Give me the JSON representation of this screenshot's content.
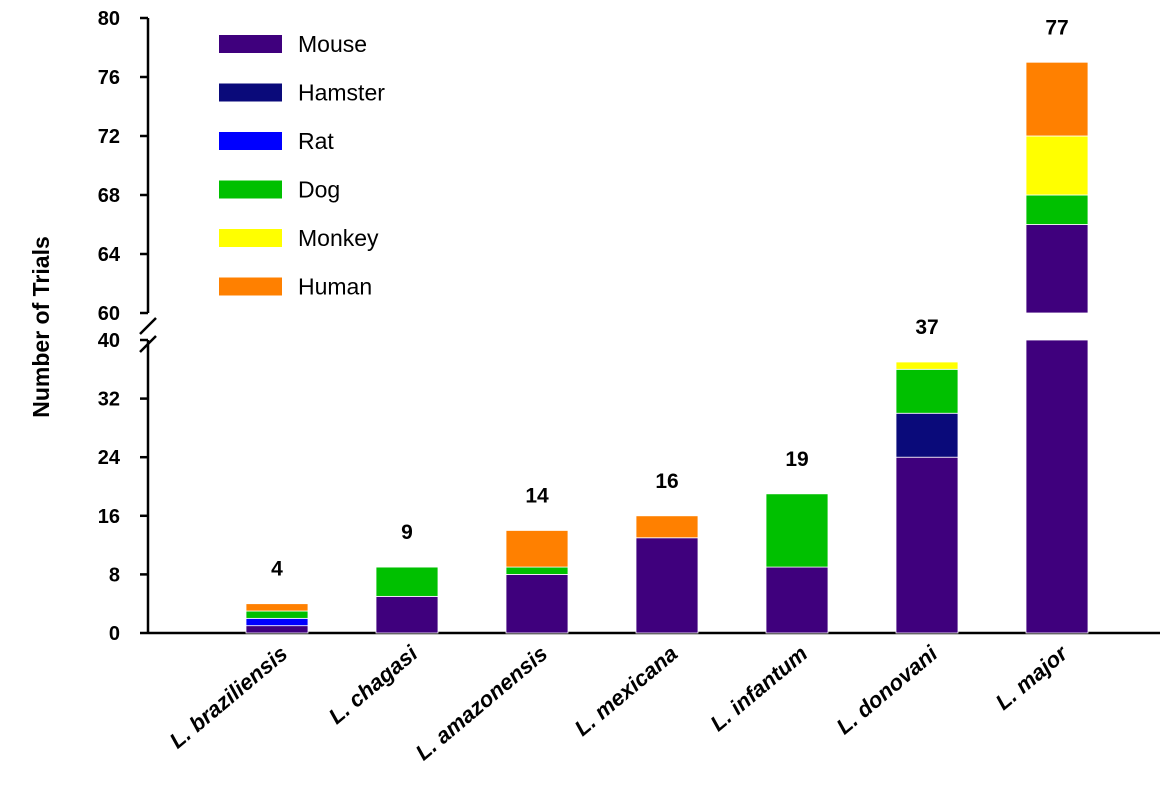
{
  "chart_data": {
    "type": "bar",
    "stacked": true,
    "title": "",
    "xlabel": "",
    "ylabel": "Number of Trials",
    "y_axis_break": {
      "lower_range": [
        0,
        40
      ],
      "upper_range": [
        60,
        80
      ]
    },
    "ylim": [
      0,
      80
    ],
    "yticks_lower": [
      "0",
      "8",
      "16",
      "24",
      "32",
      "40"
    ],
    "yticks_upper": [
      "60",
      "64",
      "68",
      "72",
      "76",
      "80"
    ],
    "legend_position": "top-left",
    "categories": [
      "L. braziliensis",
      "L. chagasi",
      "L. amazonensis",
      "L. mexicana",
      "L. infantum",
      "L. donovani",
      "L. major"
    ],
    "totals": [
      "4",
      "9",
      "14",
      "16",
      "19",
      "37",
      "77"
    ],
    "series": [
      {
        "name": "Mouse",
        "color": "#3f007d",
        "values": [
          1,
          5,
          8,
          13,
          9,
          24,
          66
        ]
      },
      {
        "name": "Hamster",
        "color": "#0a0a7a",
        "values": [
          0,
          0,
          0,
          0,
          0,
          6,
          0
        ]
      },
      {
        "name": "Rat",
        "color": "#0000ff",
        "values": [
          1,
          0,
          0,
          0,
          0,
          0,
          0
        ]
      },
      {
        "name": "Dog",
        "color": "#00c000",
        "values": [
          1,
          4,
          1,
          0,
          10,
          6,
          2
        ]
      },
      {
        "name": "Monkey",
        "color": "#ffff00",
        "values": [
          0,
          0,
          0,
          0,
          0,
          1,
          4
        ]
      },
      {
        "name": "Human",
        "color": "#ff8000",
        "values": [
          1,
          0,
          5,
          3,
          0,
          0,
          5
        ]
      }
    ]
  }
}
